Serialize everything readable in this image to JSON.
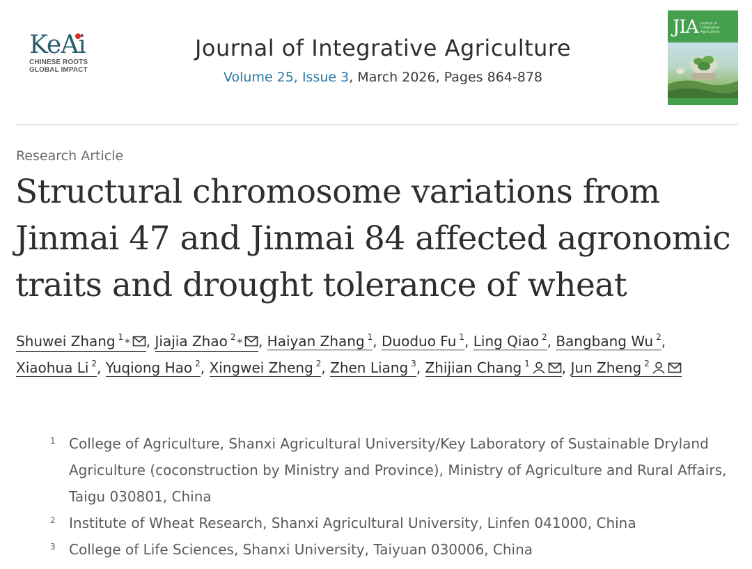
{
  "publisher": {
    "logo_text": "KeAi",
    "tagline_1": "CHINESE ROOTS",
    "tagline_2": "GLOBAL IMPACT",
    "brand_color": "#2b5d6f",
    "dot_color": "#d9322a"
  },
  "journal": {
    "name": "Journal of Integrative Agriculture",
    "issue_link": "Volume 25, Issue 3",
    "issue_rest": ", March 2026, Pages 864-878",
    "link_color": "#2c77a8"
  },
  "cover": {
    "title": "JIA",
    "subtitle": "Journal of Integrative Agriculture",
    "background": "#44a04c"
  },
  "article": {
    "type": "Research Article",
    "title": "Structural chromosome variations from Jinmai 47 and Jinmai 84 affected agronomic traits and drought tolerance of wheat"
  },
  "authors": [
    {
      "name": "Shuwei Zhang",
      "aff": "1",
      "mark": "*",
      "icons": [
        "mail-icon"
      ]
    },
    {
      "name": "Jiajia Zhao",
      "aff": "2",
      "mark": "*",
      "icons": [
        "mail-icon"
      ]
    },
    {
      "name": "Haiyan Zhang",
      "aff": "1",
      "mark": "",
      "icons": []
    },
    {
      "name": "Duoduo Fu",
      "aff": "1",
      "mark": "",
      "icons": []
    },
    {
      "name": "Ling Qiao",
      "aff": "2",
      "mark": "",
      "icons": []
    },
    {
      "name": "Bangbang Wu",
      "aff": "2",
      "mark": "",
      "icons": []
    },
    {
      "name": "Xiaohua Li",
      "aff": "2",
      "mark": "",
      "icons": []
    },
    {
      "name": "Yuqiong Hao",
      "aff": "2",
      "mark": "",
      "icons": []
    },
    {
      "name": "Xingwei Zheng",
      "aff": "2",
      "mark": "",
      "icons": []
    },
    {
      "name": "Zhen Liang",
      "aff": "3",
      "mark": "",
      "icons": []
    },
    {
      "name": "Zhijian Chang",
      "aff": "1",
      "mark": "",
      "icons": [
        "person-icon",
        "mail-icon"
      ]
    },
    {
      "name": "Jun Zheng",
      "aff": "2",
      "mark": "",
      "icons": [
        "person-icon",
        "mail-icon"
      ]
    }
  ],
  "affiliations": [
    {
      "num": "1",
      "text": "College of Agriculture, Shanxi Agricultural University/Key Laboratory of Sustainable Dryland Agriculture (coconstruction by Ministry and Province), Ministry of Agriculture and Rural Affairs, Taigu 030801, China"
    },
    {
      "num": "2",
      "text": "Institute of Wheat Research, Shanxi Agricultural University, Linfen 041000, China"
    },
    {
      "num": "3",
      "text": "College of Life Sciences, Shanxi University, Taiyuan 030006, China"
    }
  ]
}
